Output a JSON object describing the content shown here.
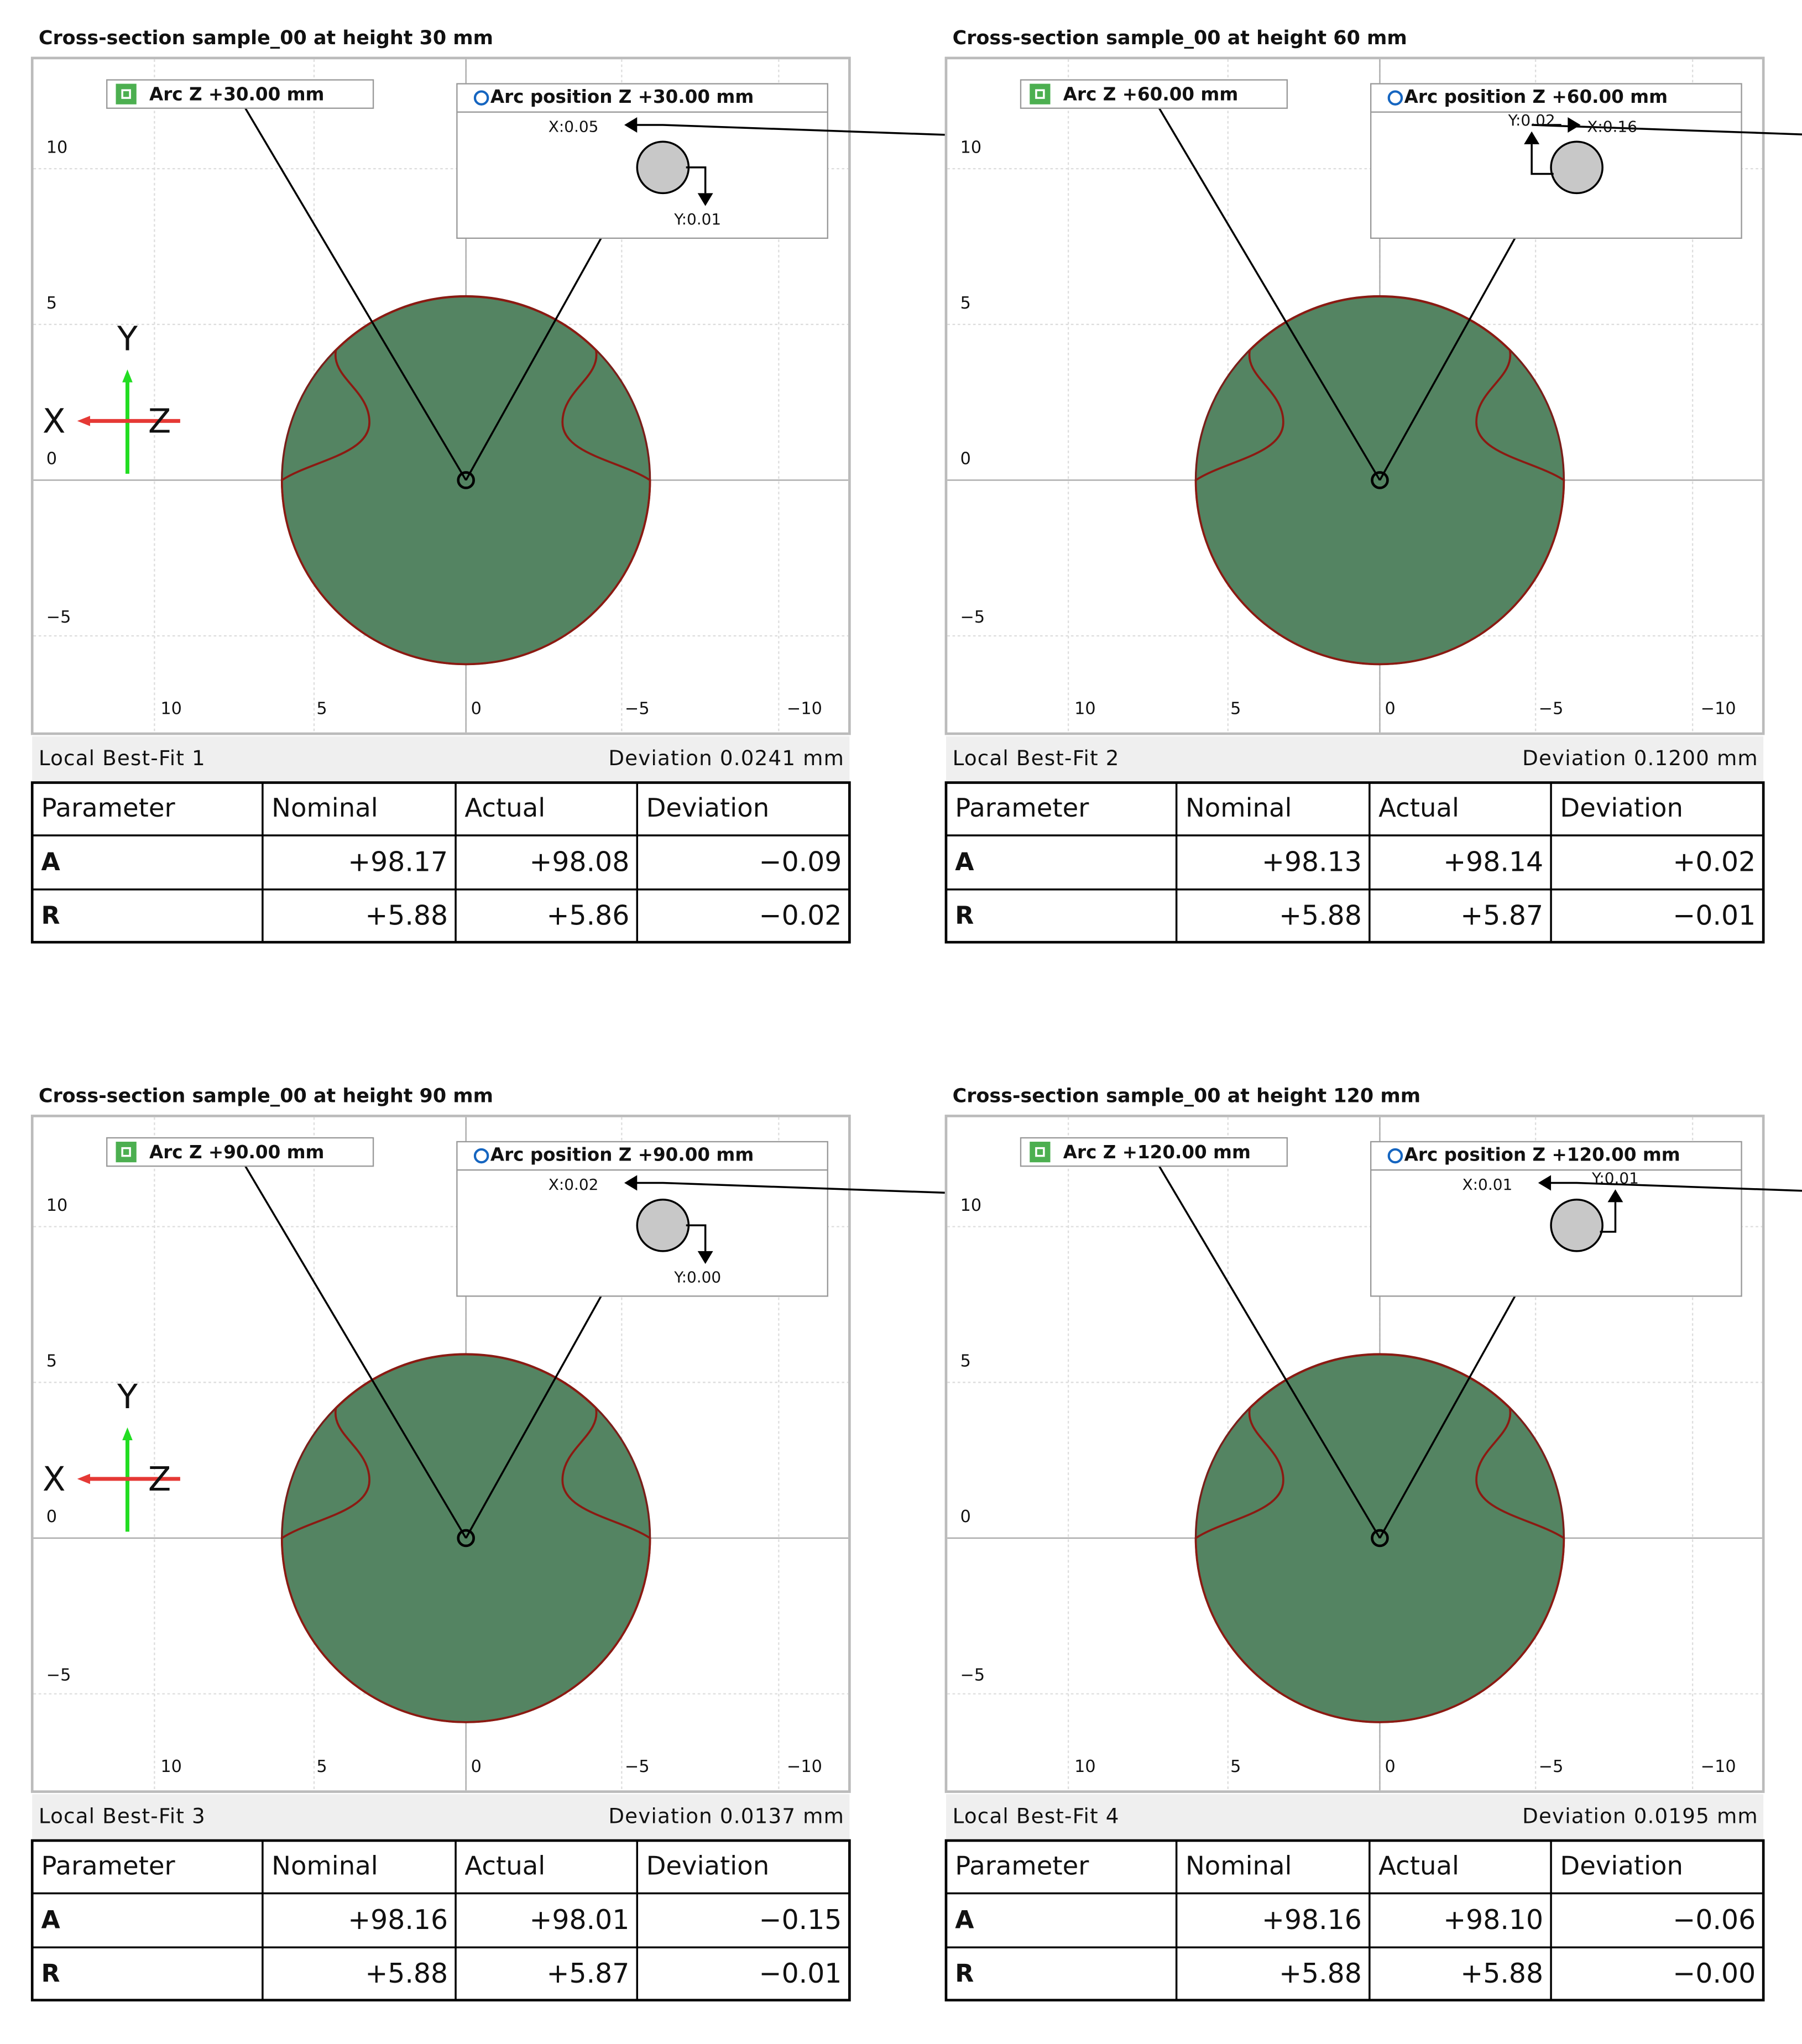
{
  "panels": [
    {
      "title": "Cross-section sample_00 at height 30 mm",
      "arc_label": "Arc Z +30.00 mm",
      "position_label": "Arc position Z +30.00 mm",
      "x_shift": "X:0.05",
      "y_shift": "Y:0.01",
      "triad": {
        "y": "Y",
        "x": "X",
        "z": "Z"
      },
      "fit_name": "Local Best-Fit 1",
      "deviation": "Deviation 0.0241 mm",
      "rows": [
        [
          "A",
          "+98.17",
          "+98.08",
          "−0.09"
        ],
        [
          "R",
          "+5.88",
          "+5.86",
          "−0.02"
        ]
      ]
    },
    {
      "title": "Cross-section sample_00 at height 60 mm",
      "arc_label": "Arc Z +60.00 mm",
      "position_label": "Arc position Z +60.00 mm",
      "x_shift": "X:0.16",
      "y_shift": "Y:0.02",
      "fit_name": "Local Best-Fit 2",
      "deviation": "Deviation 0.1200 mm",
      "rows": [
        [
          "A",
          "+98.13",
          "+98.14",
          "+0.02"
        ],
        [
          "R",
          "+5.88",
          "+5.87",
          "−0.01"
        ]
      ]
    },
    {
      "title": "Cross-section sample_00 at height 90 mm",
      "arc_label": "Arc Z +90.00 mm",
      "position_label": "Arc position Z +90.00 mm",
      "x_shift": "X:0.02",
      "y_shift": "Y:0.00",
      "triad": {
        "y": "Y",
        "x": "X",
        "z": "Z"
      },
      "fit_name": "Local Best-Fit 3",
      "deviation": "Deviation 0.0137 mm",
      "rows": [
        [
          "A",
          "+98.16",
          "+98.01",
          "−0.15"
        ],
        [
          "R",
          "+5.88",
          "+5.87",
          "−0.01"
        ]
      ]
    },
    {
      "title": "Cross-section sample_00 at height 120 mm",
      "arc_label": "Arc Z +120.00 mm",
      "position_label": "Arc position Z +120.00 mm",
      "x_shift": "X:0.01",
      "y_shift": "Y:0.01",
      "fit_name": "Local Best-Fit 4",
      "deviation": "Deviation 0.0195 mm",
      "rows": [
        [
          "A",
          "+98.16",
          "+98.10",
          "−0.06"
        ],
        [
          "R",
          "+5.88",
          "+5.88",
          "−0.00"
        ]
      ]
    }
  ],
  "x_tick_labels": [
    "10",
    "5",
    "0",
    "−5",
    "−10"
  ],
  "y_tick_labels": [
    "10",
    "5",
    "0",
    "−5"
  ],
  "table_header": [
    "Parameter",
    "Nominal",
    "Actual",
    "Deviation"
  ]
}
